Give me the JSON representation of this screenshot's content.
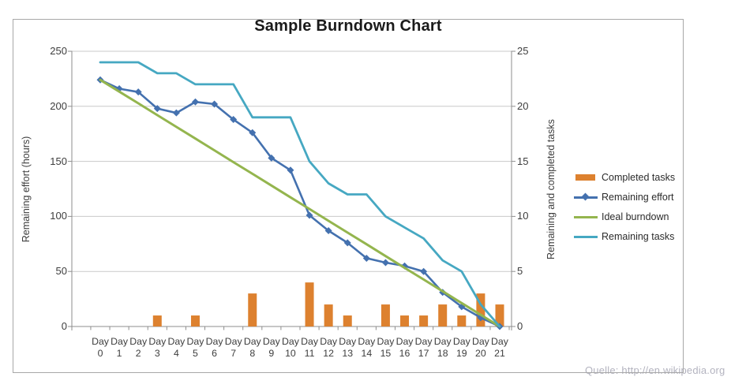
{
  "watermark": "Quelle: http://en.wikipedia.org",
  "colors": {
    "gridline": "#C9C9C9",
    "axis": "#8E8E8E",
    "frame": "#A8A8A8",
    "tick_text": "#3D3D3D",
    "completed_tasks": "#DD812F",
    "remaining_effort": "#4471AF",
    "ideal_burndown": "#94B54E",
    "remaining_tasks": "#46A8C2"
  },
  "chart_data": {
    "type": "combo",
    "title": "Sample Burndown Chart",
    "categories": [
      "Day 0",
      "Day 1",
      "Day 2",
      "Day 3",
      "Day 4",
      "Day 5",
      "Day 6",
      "Day 7",
      "Day 8",
      "Day 9",
      "Day 10",
      "Day 11",
      "Day 12",
      "Day 13",
      "Day 14",
      "Day 15",
      "Day 16",
      "Day 17",
      "Day 18",
      "Day 19",
      "Day 20",
      "Day 21"
    ],
    "left_axis": {
      "label": "Remaining effort (hours)",
      "ticks": [
        0,
        50,
        100,
        150,
        200,
        250
      ],
      "range": [
        0,
        250
      ]
    },
    "right_axis": {
      "label": "Remaining and completed tasks",
      "ticks": [
        0,
        5,
        10,
        15,
        20,
        25
      ],
      "range": [
        0,
        25
      ]
    },
    "gridlines": "horizontal",
    "legend_position": "right",
    "series": [
      {
        "name": "Completed tasks",
        "type": "bar",
        "axis": "right",
        "color": "#DD812F",
        "values": [
          0,
          0,
          0,
          1,
          0,
          1,
          0,
          0,
          3,
          0,
          0,
          4,
          2,
          1,
          0,
          2,
          1,
          1,
          2,
          1,
          3,
          2
        ]
      },
      {
        "name": "Remaining effort",
        "type": "line",
        "axis": "left",
        "color": "#4471AF",
        "marker": "diamond",
        "values": [
          224,
          216,
          213,
          198,
          194,
          204,
          202,
          188,
          176,
          153,
          142,
          101,
          87,
          76,
          62,
          58,
          55,
          50,
          31,
          18,
          8,
          0
        ]
      },
      {
        "name": "Ideal burndown",
        "type": "line",
        "axis": "left",
        "color": "#94B54E",
        "values": [
          224,
          213.3,
          202.7,
          192,
          181.3,
          170.7,
          160,
          149.3,
          138.7,
          128,
          117.3,
          106.7,
          96,
          85.3,
          74.7,
          64,
          53.3,
          42.7,
          32,
          21.3,
          10.7,
          0
        ]
      },
      {
        "name": "Remaining tasks",
        "type": "line",
        "axis": "right",
        "color": "#46A8C2",
        "values": [
          24,
          24,
          24,
          23,
          23,
          22,
          22,
          22,
          19,
          19,
          19,
          15,
          13,
          12,
          12,
          10,
          9,
          8,
          6,
          5,
          2,
          0
        ]
      }
    ]
  }
}
